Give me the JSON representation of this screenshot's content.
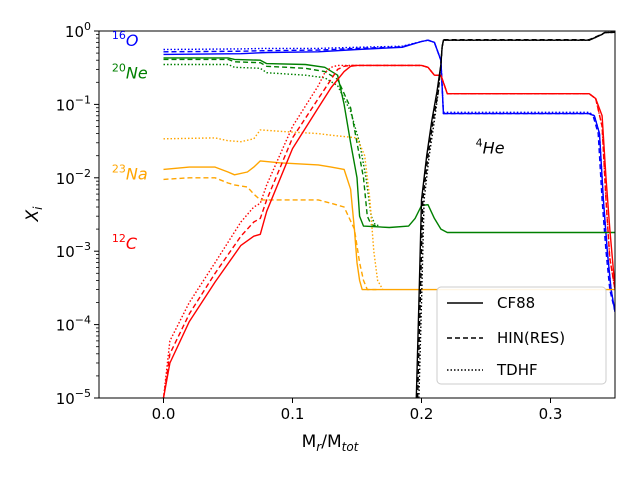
{
  "chart_data": {
    "type": "line",
    "xlabel": "M",
    "xlabel_sub1": "r",
    "xlabel_mid": "/M",
    "xlabel_sub2": "tot",
    "ylabel": "X",
    "ylabel_sub": "i",
    "xlim": [
      -0.05,
      0.35
    ],
    "ylim_log10": [
      -5,
      0
    ],
    "yscale": "log",
    "x_ticks": [
      {
        "value": 0.0,
        "label": "0.0"
      },
      {
        "value": 0.1,
        "label": "0.1"
      },
      {
        "value": 0.2,
        "label": "0.2"
      },
      {
        "value": 0.3,
        "label": "0.3"
      }
    ],
    "y_ticks": [
      {
        "exp": 0,
        "base": "10",
        "sup": "0"
      },
      {
        "exp": -1,
        "base": "10",
        "sup": "−1"
      },
      {
        "exp": -2,
        "base": "10",
        "sup": "−2"
      },
      {
        "exp": -3,
        "base": "10",
        "sup": "−3"
      },
      {
        "exp": -4,
        "base": "10",
        "sup": "−4"
      },
      {
        "exp": -5,
        "base": "10",
        "sup": "−5"
      }
    ],
    "colors": {
      "O16": "#0000ff",
      "Ne20": "#008000",
      "Na23": "#ffa500",
      "C12": "#ff0000",
      "He4": "#000000"
    },
    "annotations": [
      {
        "id": "O16",
        "sup": "16",
        "text": "O",
        "color": "#0000ff",
        "x": -0.04,
        "y": 0.75
      },
      {
        "id": "Ne20",
        "sup": "20",
        "text": "Ne",
        "color": "#008000",
        "x": -0.04,
        "y": 0.27
      },
      {
        "id": "Na23",
        "sup": "23",
        "text": "Na",
        "color": "#ffa500",
        "x": -0.04,
        "y": 0.0115
      },
      {
        "id": "C12",
        "sup": "12",
        "text": "C",
        "color": "#ff0000",
        "x": -0.04,
        "y": 0.0013
      },
      {
        "id": "He4",
        "sup": "4",
        "text": "He",
        "color": "#000000",
        "x": 0.242,
        "y": 0.026
      }
    ],
    "legend": {
      "position": "lower right",
      "entries": [
        {
          "label": "CF88",
          "style": "solid"
        },
        {
          "label": "HIN(RES)",
          "style": "dashed"
        },
        {
          "label": "TDHF",
          "style": "dotted"
        }
      ]
    },
    "series": [
      {
        "name": "16O CF88",
        "color": "#0000ff",
        "style": "solid",
        "x": [
          0,
          0.06,
          0.08,
          0.12,
          0.15,
          0.185,
          0.2,
          0.205,
          0.21,
          0.215,
          0.217,
          0.33,
          0.334,
          0.338,
          0.341,
          0.344,
          0.347,
          0.35
        ],
        "y": [
          0.48,
          0.49,
          0.51,
          0.52,
          0.56,
          0.6,
          0.72,
          0.75,
          0.7,
          0.4,
          0.075,
          0.075,
          0.07,
          0.04,
          0.005,
          0.001,
          0.0003,
          0.00015
        ]
      },
      {
        "name": "16O HIN",
        "color": "#0000ff",
        "style": "dashed",
        "x": [
          0,
          0.06,
          0.08,
          0.12,
          0.15,
          0.185,
          0.2,
          0.205,
          0.21,
          0.215,
          0.217,
          0.33,
          0.333,
          0.337,
          0.34,
          0.343,
          0.346,
          0.35
        ],
        "y": [
          0.52,
          0.53,
          0.54,
          0.55,
          0.58,
          0.61,
          0.72,
          0.75,
          0.7,
          0.4,
          0.075,
          0.075,
          0.07,
          0.04,
          0.005,
          0.001,
          0.0003,
          0.00015
        ]
      },
      {
        "name": "16O TDHF",
        "color": "#0000ff",
        "style": "dotted",
        "x": [
          0,
          0.06,
          0.08,
          0.12,
          0.15,
          0.185,
          0.2,
          0.205,
          0.21,
          0.215,
          0.217,
          0.33,
          0.334,
          0.338,
          0.341,
          0.344,
          0.347,
          0.35
        ],
        "y": [
          0.56,
          0.57,
          0.58,
          0.58,
          0.6,
          0.62,
          0.72,
          0.75,
          0.7,
          0.4,
          0.078,
          0.078,
          0.07,
          0.04,
          0.005,
          0.001,
          0.0003,
          0.00015
        ]
      },
      {
        "name": "20Ne CF88",
        "color": "#008000",
        "style": "solid",
        "x": [
          0,
          0.05,
          0.055,
          0.075,
          0.08,
          0.11,
          0.125,
          0.135,
          0.14,
          0.145,
          0.15,
          0.152,
          0.155,
          0.175,
          0.19,
          0.195,
          0.2,
          0.205,
          0.21,
          0.215,
          0.22,
          0.25,
          0.34,
          0.343,
          0.35
        ],
        "y": [
          0.43,
          0.43,
          0.41,
          0.4,
          0.36,
          0.35,
          0.32,
          0.25,
          0.1,
          0.03,
          0.01,
          0.003,
          0.0022,
          0.0021,
          0.0022,
          0.0028,
          0.0042,
          0.0043,
          0.0028,
          0.002,
          0.0018,
          0.0018,
          0.0018,
          0.0018,
          0.0018
        ]
      },
      {
        "name": "20Ne HIN",
        "color": "#008000",
        "style": "dashed",
        "x": [
          0,
          0.05,
          0.055,
          0.075,
          0.08,
          0.11,
          0.125,
          0.135,
          0.145,
          0.15,
          0.155,
          0.158,
          0.161,
          0.165
        ],
        "y": [
          0.41,
          0.41,
          0.38,
          0.37,
          0.33,
          0.31,
          0.28,
          0.22,
          0.09,
          0.03,
          0.01,
          0.003,
          0.0023,
          0.0022
        ]
      },
      {
        "name": "20Ne TDHF",
        "color": "#008000",
        "style": "dotted",
        "x": [
          0,
          0.05,
          0.055,
          0.075,
          0.08,
          0.11,
          0.125,
          0.135,
          0.145,
          0.152,
          0.157,
          0.161,
          0.164,
          0.168
        ],
        "y": [
          0.35,
          0.35,
          0.32,
          0.31,
          0.27,
          0.25,
          0.23,
          0.18,
          0.08,
          0.03,
          0.01,
          0.003,
          0.0023,
          0.0022
        ]
      },
      {
        "name": "23Na CF88",
        "color": "#ffa500",
        "style": "solid",
        "x": [
          0,
          0.02,
          0.04,
          0.05,
          0.055,
          0.065,
          0.07,
          0.075,
          0.09,
          0.12,
          0.13,
          0.14,
          0.145,
          0.148,
          0.15,
          0.152,
          0.154,
          0.165,
          0.3,
          0.33,
          0.35
        ],
        "y": [
          0.013,
          0.014,
          0.014,
          0.012,
          0.011,
          0.012,
          0.014,
          0.017,
          0.016,
          0.015,
          0.014,
          0.013,
          0.007,
          0.002,
          0.0007,
          0.0004,
          0.0003,
          0.0003,
          0.0003,
          0.0003,
          0.0003
        ]
      },
      {
        "name": "23Na HIN",
        "color": "#ffa500",
        "style": "dashed",
        "x": [
          0,
          0.02,
          0.04,
          0.05,
          0.055,
          0.065,
          0.07,
          0.075,
          0.09,
          0.12,
          0.13,
          0.14,
          0.148,
          0.152,
          0.155,
          0.158,
          0.165
        ],
        "y": [
          0.0095,
          0.01,
          0.01,
          0.0085,
          0.008,
          0.0075,
          0.006,
          0.005,
          0.005,
          0.005,
          0.0045,
          0.004,
          0.002,
          0.0007,
          0.0004,
          0.0003,
          0.0003
        ]
      },
      {
        "name": "23Na TDHF",
        "color": "#ffa500",
        "style": "dotted",
        "x": [
          0,
          0.04,
          0.05,
          0.06,
          0.07,
          0.075,
          0.09,
          0.12,
          0.13,
          0.15,
          0.156,
          0.16,
          0.163,
          0.166,
          0.17
        ],
        "y": [
          0.034,
          0.035,
          0.032,
          0.031,
          0.034,
          0.045,
          0.043,
          0.04,
          0.038,
          0.035,
          0.02,
          0.005,
          0.001,
          0.0004,
          0.0003
        ]
      },
      {
        "name": "12C CF88",
        "color": "#ff0000",
        "style": "solid",
        "x": [
          0,
          0.005,
          0.02,
          0.04,
          0.06,
          0.07,
          0.075,
          0.08,
          0.1,
          0.12,
          0.13,
          0.14,
          0.145,
          0.15,
          0.155,
          0.2,
          0.205,
          0.21,
          0.215,
          0.22,
          0.33,
          0.335,
          0.34,
          0.343,
          0.346,
          0.349,
          0.35
        ],
        "y": [
          1e-05,
          3e-05,
          0.00011,
          0.00038,
          0.0012,
          0.0016,
          0.0017,
          0.0035,
          0.025,
          0.09,
          0.17,
          0.28,
          0.33,
          0.34,
          0.34,
          0.34,
          0.32,
          0.25,
          0.25,
          0.14,
          0.14,
          0.12,
          0.07,
          0.01,
          0.002,
          0.0005,
          0.0003
        ]
      },
      {
        "name": "12C HIN",
        "color": "#ff0000",
        "style": "dashed",
        "x": [
          0,
          0.005,
          0.02,
          0.04,
          0.06,
          0.07,
          0.075,
          0.08,
          0.1,
          0.12,
          0.13,
          0.135,
          0.14,
          0.145,
          0.15,
          0.2,
          0.205,
          0.21,
          0.215,
          0.22,
          0.33,
          0.335,
          0.34,
          0.343,
          0.346,
          0.35
        ],
        "y": [
          1e-05,
          4e-05,
          0.00014,
          0.0005,
          0.0016,
          0.0025,
          0.0028,
          0.005,
          0.035,
          0.12,
          0.22,
          0.3,
          0.33,
          0.34,
          0.34,
          0.34,
          0.32,
          0.25,
          0.25,
          0.14,
          0.14,
          0.12,
          0.05,
          0.005,
          0.0008,
          0.0003
        ]
      },
      {
        "name": "12C TDHF",
        "color": "#ff0000",
        "style": "dotted",
        "x": [
          0,
          0.005,
          0.02,
          0.04,
          0.06,
          0.07,
          0.075,
          0.08,
          0.1,
          0.12,
          0.125,
          0.13,
          0.135,
          0.14,
          0.2,
          0.205,
          0.21,
          0.215,
          0.22,
          0.33,
          0.335,
          0.34,
          0.343,
          0.346,
          0.35
        ],
        "y": [
          1e-05,
          6e-05,
          0.0002,
          0.0007,
          0.0025,
          0.004,
          0.0045,
          0.008,
          0.05,
          0.18,
          0.27,
          0.32,
          0.34,
          0.34,
          0.34,
          0.32,
          0.25,
          0.25,
          0.14,
          0.14,
          0.12,
          0.05,
          0.005,
          0.0008,
          0.0003
        ]
      },
      {
        "name": "4He CF88",
        "color": "#000000",
        "style": "solid",
        "x": [
          0.196,
          0.198,
          0.2,
          0.204,
          0.208,
          0.212,
          0.215,
          0.216,
          0.217,
          0.33,
          0.335,
          0.34,
          0.342,
          0.35
        ],
        "y": [
          1e-05,
          0.0002,
          0.005,
          0.02,
          0.06,
          0.15,
          0.35,
          0.6,
          0.75,
          0.75,
          0.82,
          0.9,
          0.95,
          0.96
        ]
      },
      {
        "name": "4He HIN",
        "color": "#000000",
        "style": "dashed",
        "x": [
          0.197,
          0.199,
          0.201,
          0.205,
          0.209,
          0.213,
          0.215,
          0.216,
          0.217,
          0.33,
          0.335,
          0.34,
          0.342,
          0.35
        ],
        "y": [
          1e-05,
          0.0002,
          0.005,
          0.02,
          0.06,
          0.15,
          0.35,
          0.6,
          0.76,
          0.76,
          0.83,
          0.91,
          0.95,
          0.96
        ]
      },
      {
        "name": "4He TDHF",
        "color": "#000000",
        "style": "dotted",
        "x": [
          0.198,
          0.2,
          0.202,
          0.206,
          0.21,
          0.213,
          0.215,
          0.216,
          0.217,
          0.33,
          0.335,
          0.34,
          0.342,
          0.35
        ],
        "y": [
          1e-05,
          0.0002,
          0.005,
          0.02,
          0.06,
          0.15,
          0.35,
          0.6,
          0.75,
          0.75,
          0.82,
          0.9,
          0.95,
          0.96
        ]
      }
    ]
  }
}
